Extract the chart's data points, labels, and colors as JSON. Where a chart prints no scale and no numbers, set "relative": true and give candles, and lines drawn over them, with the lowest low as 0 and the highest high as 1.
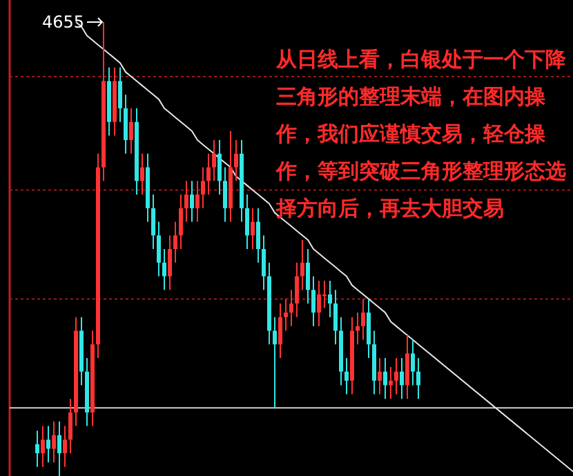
{
  "chart_data": {
    "type": "candlestick",
    "relative": true,
    "categories": [
      null,
      null,
      null,
      null,
      null,
      null,
      null,
      null,
      null,
      null,
      null,
      null,
      null,
      null,
      null,
      null,
      null,
      null,
      null,
      null,
      null,
      null,
      null,
      null,
      null,
      null,
      null,
      null,
      null,
      null,
      null,
      null,
      null,
      null,
      null,
      null,
      null,
      null,
      null,
      null,
      null,
      null,
      null,
      null,
      null,
      null,
      null,
      null,
      null,
      null,
      null,
      null,
      null,
      null,
      null,
      null,
      null,
      null,
      null,
      null,
      null,
      null,
      null,
      null,
      null,
      null,
      null,
      null,
      null,
      null
    ],
    "colors": [
      "#33e6e6",
      "#ff3333",
      "#33e6e6",
      "#ff3333",
      "#33e6e6",
      "#ff3333",
      "#ff3333",
      "#ff3333",
      "#33e6e6",
      "#33e6e6",
      "#ff3333",
      "#ff3333",
      "#ff3333",
      "#33e6e6",
      "#ff3333",
      "#33e6e6",
      "#33e6e6",
      "#ff3333",
      "#33e6e6",
      "#ff3333",
      "#33e6e6",
      "#33e6e6",
      "#33e6e6",
      "#33e6e6",
      "#ff3333",
      "#ff3333",
      "#ff3333",
      "#ff3333",
      "#33e6e6",
      "#ff3333",
      "#ff3333",
      "#ff3333",
      "#ff3333",
      "#33e6e6",
      "#33e6e6",
      "#ff3333",
      "#ff3333",
      "#33e6e6",
      "#33e6e6",
      "#ff3333",
      "#33e6e6",
      "#33e6e6",
      "#33e6e6",
      "#33e6e6",
      "#ff3333",
      "#ff3333",
      "#ff3333",
      "#ff3333",
      "#ff3333",
      "#33e6e6",
      "#33e6e6",
      "#ff3333",
      "#ff3333",
      "#33e6e6",
      "#33e6e6",
      "#33e6e6",
      "#33e6e6",
      "#ff3333",
      "#ff3333",
      "#ff3333",
      "#33e6e6",
      "#33e6e6",
      "#ff3333",
      "#33e6e6",
      "#ff3333",
      "#ff3333",
      "#33e6e6",
      "#ff3333",
      "#33e6e6",
      "#33e6e6"
    ],
    "ohlc": [
      [
        0.07,
        0.1,
        0.02,
        0.05
      ],
      [
        0.05,
        0.11,
        0.02,
        0.08
      ],
      [
        0.08,
        0.11,
        0.03,
        0.06
      ],
      [
        0.06,
        0.12,
        0.03,
        0.09
      ],
      [
        0.09,
        0.12,
        0,
        0.05
      ],
      [
        0.05,
        0.11,
        0.02,
        0.08
      ],
      [
        0.08,
        0.17,
        0.05,
        0.14
      ],
      [
        0.14,
        0.35,
        0.11,
        0.32
      ],
      [
        0.32,
        0.35,
        0.2,
        0.23
      ],
      [
        0.23,
        0.26,
        0.11,
        0.14
      ],
      [
        0.14,
        0.32,
        0.11,
        0.29
      ],
      [
        0.29,
        0.71,
        0.26,
        0.68
      ],
      [
        0.68,
        1,
        0.65,
        0.87
      ],
      [
        0.87,
        0.9,
        0.75,
        0.78
      ],
      [
        0.78,
        0.9,
        0.75,
        0.87
      ],
      [
        0.87,
        0.9,
        0.78,
        0.81
      ],
      [
        0.81,
        0.84,
        0.71,
        0.74
      ],
      [
        0.74,
        0.81,
        0.71,
        0.78
      ],
      [
        0.78,
        0.81,
        0.62,
        0.65
      ],
      [
        0.65,
        0.71,
        0.62,
        0.68
      ],
      [
        0.68,
        0.71,
        0.56,
        0.59
      ],
      [
        0.59,
        0.62,
        0.5,
        0.53
      ],
      [
        0.53,
        0.56,
        0.44,
        0.47
      ],
      [
        0.47,
        0.5,
        0.41,
        0.44
      ],
      [
        0.44,
        0.53,
        0.41,
        0.5
      ],
      [
        0.5,
        0.56,
        0.47,
        0.53
      ],
      [
        0.53,
        0.62,
        0.5,
        0.59
      ],
      [
        0.59,
        0.65,
        0.56,
        0.62
      ],
      [
        0.62,
        0.65,
        0.56,
        0.59
      ],
      [
        0.59,
        0.65,
        0.56,
        0.62
      ],
      [
        0.62,
        0.68,
        0.59,
        0.65
      ],
      [
        0.65,
        0.71,
        0.62,
        0.68
      ],
      [
        0.68,
        0.74,
        0.65,
        0.71
      ],
      [
        0.71,
        0.74,
        0.62,
        0.65
      ],
      [
        0.65,
        0.68,
        0.56,
        0.59
      ],
      [
        0.59,
        0.76,
        0.56,
        0.68
      ],
      [
        0.68,
        0.74,
        0.65,
        0.71
      ],
      [
        0.71,
        0.74,
        0.56,
        0.59
      ],
      [
        0.59,
        0.62,
        0.5,
        0.53
      ],
      [
        0.53,
        0.59,
        0.5,
        0.56
      ],
      [
        0.56,
        0.59,
        0.47,
        0.5
      ],
      [
        0.5,
        0.53,
        0.41,
        0.44
      ],
      [
        0.44,
        0.47,
        0.29,
        0.32
      ],
      [
        0.32,
        0.35,
        0.15,
        0.29
      ],
      [
        0.29,
        0.38,
        0.26,
        0.35
      ],
      [
        0.35,
        0.39,
        0.32,
        0.36
      ],
      [
        0.36,
        0.41,
        0.33,
        0.38
      ],
      [
        0.38,
        0.47,
        0.35,
        0.44
      ],
      [
        0.44,
        0.52,
        0.41,
        0.47
      ],
      [
        0.47,
        0.5,
        0.38,
        0.41
      ],
      [
        0.41,
        0.44,
        0.33,
        0.36
      ],
      [
        0.36,
        0.43,
        0.33,
        0.4
      ],
      [
        0.4,
        0.43,
        0.37,
        0.4
      ],
      [
        0.4,
        0.43,
        0.35,
        0.38
      ],
      [
        0.38,
        0.41,
        0.29,
        0.32
      ],
      [
        0.32,
        0.35,
        0.2,
        0.23
      ],
      [
        0.23,
        0.26,
        0.18,
        0.21
      ],
      [
        0.21,
        0.35,
        0.18,
        0.32
      ],
      [
        0.32,
        0.36,
        0.29,
        0.33
      ],
      [
        0.33,
        0.39,
        0.3,
        0.36
      ],
      [
        0.36,
        0.39,
        0.26,
        0.29
      ],
      [
        0.29,
        0.32,
        0.18,
        0.21
      ],
      [
        0.21,
        0.26,
        0.18,
        0.23
      ],
      [
        0.23,
        0.26,
        0.17,
        0.2
      ],
      [
        0.2,
        0.24,
        0.17,
        0.21
      ],
      [
        0.21,
        0.26,
        0.18,
        0.23
      ],
      [
        0.23,
        0.26,
        0.17,
        0.2
      ],
      [
        0.2,
        0.31,
        0.17,
        0.27
      ],
      [
        0.27,
        0.3,
        0.2,
        0.23
      ],
      [
        0.23,
        0.26,
        0.17,
        0.2
      ]
    ],
    "series": [
      {
        "type": "line",
        "color": "#e6e6e6",
        "values": [
          null,
          null,
          null,
          null,
          null,
          null,
          null,
          1.0,
          0.99,
          0.97,
          0.96,
          0.95,
          0.94,
          0.93,
          0.92,
          0.91,
          0.89,
          0.88,
          0.87,
          0.86,
          0.85,
          0.84,
          0.83,
          0.81,
          0.8,
          0.79,
          0.78,
          0.77,
          0.76,
          0.74,
          0.73,
          0.72,
          0.71,
          0.7,
          0.69,
          0.68,
          0.66,
          0.65,
          0.64,
          0.63,
          0.62,
          0.61,
          0.6,
          0.58,
          0.57,
          0.56,
          0.55,
          0.54,
          0.53,
          0.52,
          0.5,
          0.49,
          0.48,
          0.47,
          0.46,
          0.45,
          0.44,
          0.42,
          0.41,
          0.4,
          0.39,
          0.38,
          0.37,
          0.36,
          0.34,
          0.33,
          0.32,
          0.31,
          0.3,
          0.29
        ]
      }
    ],
    "ref_lines": [
      {
        "axis": "y",
        "value": 0.88,
        "color": "#a01818",
        "line_style": "dotted"
      },
      {
        "axis": "y",
        "value": 0.63,
        "color": "#a01818",
        "line_style": "dotted"
      },
      {
        "axis": "y",
        "value": 0.39,
        "color": "#a01818",
        "line_style": "dotted"
      },
      {
        "axis": "y",
        "value": 0.15,
        "color": "#d0d0d0",
        "line_style": "solid"
      }
    ],
    "annotations": [
      "4655",
      "从日线上看，白银处于一个下降三角形的整理末端，在图内操作，我们应谨慎交易，轻仓操作，等到突破三角形整理形态选择方向后，再去大胆交易"
    ]
  }
}
